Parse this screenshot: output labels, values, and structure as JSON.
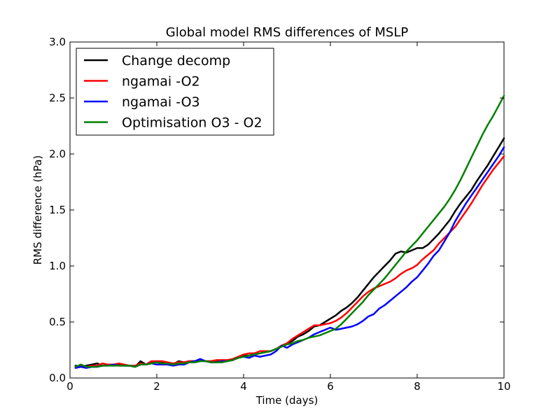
{
  "chart_data": {
    "type": "line",
    "title": "Global model RMS differences of MSLP",
    "xlabel": "Time (days)",
    "ylabel": "RMS difference (hPa)",
    "xlim": [
      0,
      10
    ],
    "ylim": [
      0,
      3.0
    ],
    "xticks": [
      0,
      2,
      4,
      6,
      8,
      10
    ],
    "xtick_labels": [
      "0",
      "2",
      "4",
      "6",
      "8",
      "10"
    ],
    "yticks": [
      0.0,
      0.5,
      1.0,
      1.5,
      2.0,
      2.5,
      3.0
    ],
    "ytick_labels": [
      "0.0",
      "0.5",
      "1.0",
      "1.5",
      "2.0",
      "2.5",
      "3.0"
    ],
    "grid": false,
    "legend_position": "top-left",
    "series": [
      {
        "name": "Change decomp",
        "color": "#000000",
        "x": [
          0.125,
          0.25,
          0.375,
          0.5,
          0.625,
          0.75,
          0.875,
          1.0,
          1.125,
          1.25,
          1.375,
          1.5,
          1.625,
          1.75,
          1.875,
          2.0,
          2.125,
          2.25,
          2.375,
          2.5,
          2.625,
          2.75,
          2.875,
          3.0,
          3.125,
          3.25,
          3.375,
          3.5,
          3.625,
          3.75,
          3.875,
          4.0,
          4.125,
          4.25,
          4.375,
          4.5,
          4.625,
          4.75,
          4.875,
          5.0,
          5.125,
          5.25,
          5.375,
          5.5,
          5.625,
          5.75,
          5.875,
          6.0,
          6.125,
          6.25,
          6.375,
          6.5,
          6.625,
          6.75,
          6.875,
          7.0,
          7.125,
          7.25,
          7.375,
          7.5,
          7.625,
          7.75,
          7.875,
          8.0,
          8.125,
          8.25,
          8.375,
          8.5,
          8.625,
          8.75,
          8.875,
          9.0,
          9.125,
          9.25,
          9.375,
          9.5,
          9.625,
          9.75,
          9.875,
          10.0
        ],
        "values": [
          0.11,
          0.1,
          0.11,
          0.12,
          0.13,
          0.11,
          0.12,
          0.11,
          0.12,
          0.11,
          0.11,
          0.1,
          0.15,
          0.12,
          0.14,
          0.15,
          0.14,
          0.14,
          0.12,
          0.15,
          0.14,
          0.15,
          0.15,
          0.16,
          0.15,
          0.15,
          0.15,
          0.15,
          0.16,
          0.16,
          0.18,
          0.2,
          0.2,
          0.21,
          0.22,
          0.23,
          0.24,
          0.26,
          0.28,
          0.31,
          0.33,
          0.37,
          0.39,
          0.42,
          0.46,
          0.47,
          0.5,
          0.53,
          0.56,
          0.6,
          0.63,
          0.67,
          0.72,
          0.78,
          0.84,
          0.9,
          0.95,
          1.0,
          1.05,
          1.11,
          1.13,
          1.12,
          1.14,
          1.16,
          1.16,
          1.19,
          1.24,
          1.29,
          1.35,
          1.41,
          1.49,
          1.56,
          1.62,
          1.68,
          1.76,
          1.83,
          1.9,
          1.98,
          2.06,
          2.14
        ]
      },
      {
        "name": "ngamai -O2",
        "color": "#ff0000",
        "x": [
          0.125,
          0.25,
          0.375,
          0.5,
          0.625,
          0.75,
          0.875,
          1.0,
          1.125,
          1.25,
          1.375,
          1.5,
          1.625,
          1.75,
          1.875,
          2.0,
          2.125,
          2.25,
          2.375,
          2.5,
          2.625,
          2.75,
          2.875,
          3.0,
          3.125,
          3.25,
          3.375,
          3.5,
          3.625,
          3.75,
          3.875,
          4.0,
          4.125,
          4.25,
          4.375,
          4.5,
          4.625,
          4.75,
          4.875,
          5.0,
          5.125,
          5.25,
          5.375,
          5.5,
          5.625,
          5.75,
          5.875,
          6.0,
          6.125,
          6.25,
          6.375,
          6.5,
          6.625,
          6.75,
          6.875,
          7.0,
          7.125,
          7.25,
          7.375,
          7.5,
          7.625,
          7.75,
          7.875,
          8.0,
          8.125,
          8.25,
          8.375,
          8.5,
          8.625,
          8.75,
          8.875,
          9.0,
          9.125,
          9.25,
          9.375,
          9.5,
          9.625,
          9.75,
          9.875,
          10.0
        ],
        "values": [
          0.1,
          0.11,
          0.1,
          0.11,
          0.11,
          0.13,
          0.12,
          0.12,
          0.13,
          0.12,
          0.11,
          0.11,
          0.13,
          0.12,
          0.15,
          0.15,
          0.15,
          0.14,
          0.13,
          0.14,
          0.14,
          0.15,
          0.15,
          0.16,
          0.15,
          0.15,
          0.16,
          0.16,
          0.16,
          0.17,
          0.19,
          0.21,
          0.22,
          0.22,
          0.24,
          0.24,
          0.24,
          0.26,
          0.29,
          0.31,
          0.35,
          0.38,
          0.41,
          0.44,
          0.47,
          0.47,
          0.48,
          0.49,
          0.51,
          0.54,
          0.58,
          0.63,
          0.68,
          0.73,
          0.77,
          0.8,
          0.82,
          0.84,
          0.86,
          0.89,
          0.93,
          0.96,
          0.98,
          1.01,
          1.06,
          1.1,
          1.14,
          1.2,
          1.25,
          1.3,
          1.35,
          1.42,
          1.49,
          1.56,
          1.64,
          1.72,
          1.79,
          1.86,
          1.92,
          1.98
        ]
      },
      {
        "name": "ngamai -O3",
        "color": "#0000ff",
        "x": [
          0.125,
          0.25,
          0.375,
          0.5,
          0.625,
          0.75,
          0.875,
          1.0,
          1.125,
          1.25,
          1.375,
          1.5,
          1.625,
          1.75,
          1.875,
          2.0,
          2.125,
          2.25,
          2.375,
          2.5,
          2.625,
          2.75,
          2.875,
          3.0,
          3.125,
          3.25,
          3.375,
          3.5,
          3.625,
          3.75,
          3.875,
          4.0,
          4.125,
          4.25,
          4.375,
          4.5,
          4.625,
          4.75,
          4.875,
          5.0,
          5.125,
          5.25,
          5.375,
          5.5,
          5.625,
          5.75,
          5.875,
          6.0,
          6.125,
          6.25,
          6.375,
          6.5,
          6.625,
          6.75,
          6.875,
          7.0,
          7.125,
          7.25,
          7.375,
          7.5,
          7.625,
          7.75,
          7.875,
          8.0,
          8.125,
          8.25,
          8.375,
          8.5,
          8.625,
          8.75,
          8.875,
          9.0,
          9.125,
          9.25,
          9.375,
          9.5,
          9.625,
          9.75,
          9.875,
          10.0
        ],
        "values": [
          0.09,
          0.1,
          0.09,
          0.1,
          0.1,
          0.11,
          0.11,
          0.12,
          0.11,
          0.11,
          0.11,
          0.1,
          0.12,
          0.12,
          0.13,
          0.12,
          0.12,
          0.12,
          0.11,
          0.12,
          0.12,
          0.14,
          0.15,
          0.17,
          0.15,
          0.14,
          0.14,
          0.15,
          0.15,
          0.16,
          0.18,
          0.19,
          0.18,
          0.2,
          0.19,
          0.2,
          0.21,
          0.24,
          0.29,
          0.27,
          0.3,
          0.32,
          0.34,
          0.36,
          0.39,
          0.41,
          0.43,
          0.45,
          0.43,
          0.44,
          0.45,
          0.46,
          0.48,
          0.51,
          0.55,
          0.57,
          0.62,
          0.65,
          0.69,
          0.73,
          0.77,
          0.81,
          0.86,
          0.9,
          0.96,
          1.02,
          1.09,
          1.14,
          1.22,
          1.3,
          1.4,
          1.48,
          1.56,
          1.63,
          1.7,
          1.77,
          1.84,
          1.91,
          1.98,
          2.06
        ]
      },
      {
        "name": "Optimisation O3 - O2",
        "color": "#008000",
        "x": [
          0.125,
          0.25,
          0.375,
          0.5,
          0.625,
          0.75,
          0.875,
          1.0,
          1.125,
          1.25,
          1.375,
          1.5,
          1.625,
          1.75,
          1.875,
          2.0,
          2.125,
          2.25,
          2.375,
          2.5,
          2.625,
          2.75,
          2.875,
          3.0,
          3.125,
          3.25,
          3.375,
          3.5,
          3.625,
          3.75,
          3.875,
          4.0,
          4.125,
          4.25,
          4.375,
          4.5,
          4.625,
          4.75,
          4.875,
          5.0,
          5.125,
          5.25,
          5.375,
          5.5,
          5.625,
          5.75,
          5.875,
          6.0,
          6.125,
          6.25,
          6.375,
          6.5,
          6.625,
          6.75,
          6.875,
          7.0,
          7.125,
          7.25,
          7.375,
          7.5,
          7.625,
          7.75,
          7.875,
          8.0,
          8.125,
          8.25,
          8.375,
          8.5,
          8.625,
          8.75,
          8.875,
          9.0,
          9.125,
          9.25,
          9.375,
          9.5,
          9.625,
          9.75,
          9.875,
          10.0
        ],
        "values": [
          0.1,
          0.12,
          0.1,
          0.1,
          0.1,
          0.11,
          0.11,
          0.11,
          0.11,
          0.11,
          0.11,
          0.1,
          0.12,
          0.12,
          0.13,
          0.14,
          0.13,
          0.13,
          0.12,
          0.13,
          0.13,
          0.14,
          0.14,
          0.15,
          0.15,
          0.14,
          0.14,
          0.14,
          0.15,
          0.16,
          0.18,
          0.19,
          0.2,
          0.21,
          0.22,
          0.23,
          0.24,
          0.26,
          0.28,
          0.3,
          0.31,
          0.33,
          0.34,
          0.36,
          0.37,
          0.38,
          0.4,
          0.42,
          0.44,
          0.48,
          0.53,
          0.58,
          0.63,
          0.68,
          0.74,
          0.79,
          0.84,
          0.89,
          0.95,
          1.01,
          1.07,
          1.13,
          1.18,
          1.23,
          1.29,
          1.35,
          1.41,
          1.47,
          1.53,
          1.6,
          1.68,
          1.77,
          1.87,
          1.97,
          2.07,
          2.17,
          2.26,
          2.34,
          2.43,
          2.52
        ]
      }
    ]
  }
}
